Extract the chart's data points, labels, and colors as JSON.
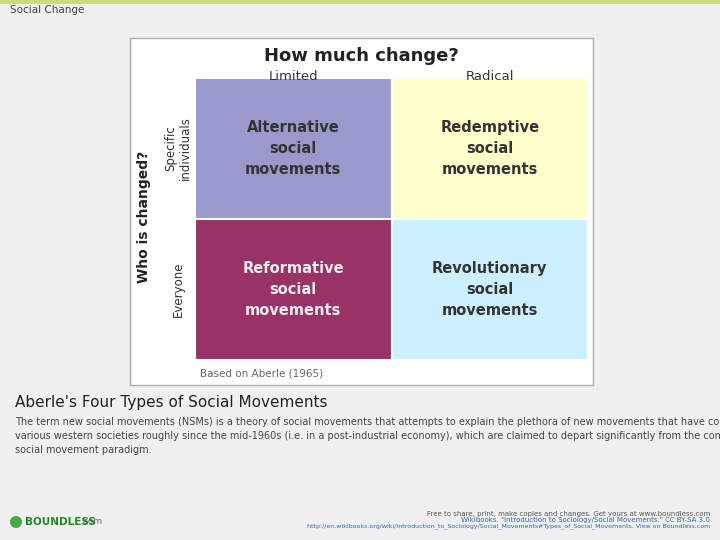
{
  "title": "Social Change",
  "header": "How much change?",
  "col_labels": [
    "Limited",
    "Radical"
  ],
  "row_labels": [
    "Specific\nindividuals",
    "Everyone"
  ],
  "y_axis_label": "Who is changed?",
  "cells": [
    {
      "text": "Alternative\nsocial\nmovements",
      "color": "#9999cc",
      "row": 0,
      "col": 0
    },
    {
      "text": "Redemptive\nsocial\nmovements",
      "color": "#ffffcc",
      "row": 0,
      "col": 1
    },
    {
      "text": "Reformative\nsocial\nmovements",
      "color": "#993366",
      "row": 1,
      "col": 0
    },
    {
      "text": "Revolutionary\nsocial\nmovements",
      "color": "#ccf0ff",
      "row": 1,
      "col": 1
    }
  ],
  "footnote": "Based on Aberle (1965)",
  "caption_title": "Aberle's Four Types of Social Movements",
  "caption_body": "The term new social movements (NSMs) is a theory of social movements that attempts to explain the plethora of new movements that have come up in\nvarious western societies roughly since the mid-1960s (i.e. in a post-industrial economy), which are claimed to depart significantly from the conventional\nsocial movement paradigm.",
  "footer_right_line1": "Free to share, print, make copies and changes. Get yours at www.boundless.com",
  "footer_right_line2": "Wikibooks. \"Introduction to Sociology/Social Movements.\" CC BY-SA 3.0",
  "footer_right_line3": "http://en.wikibooks.org/wiki/Introduction_to_Sociology/Social_Movements#Types_of_Social_Movements. View on Boundless.com",
  "bg_color": "#f0f0f0",
  "top_bar_color": "#c8dc82",
  "top_bar_height": 4
}
